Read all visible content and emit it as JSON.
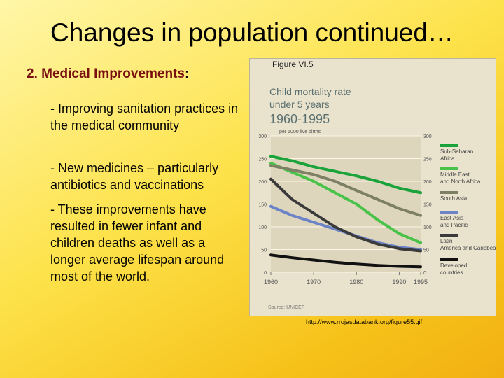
{
  "slide": {
    "title": "Changes in population continued…",
    "heading": "2. Medical Improvements",
    "heading_colon": ":",
    "bullets": [
      "- Improving sanitation practices in the medical community",
      "- New medicines – particularly antibiotics and vaccinations",
      "- These improvements have resulted in fewer infant and children deaths as well as a longer average lifespan around most of the world."
    ],
    "source_url": "http://www.rrojasdatabank.org/figure55.gif"
  },
  "chart_data": {
    "type": "line",
    "figure_label": "Figure VI.5",
    "title": "Child mortality rate under 5 years",
    "subtitle": "1960-1995",
    "ylabel": "per 1000 live births",
    "source": "Source: UNICEF",
    "x": [
      1960,
      1965,
      1970,
      1975,
      1980,
      1985,
      1990,
      1995
    ],
    "x_ticks": [
      "1960",
      "1970",
      "1980",
      "1990",
      "1995"
    ],
    "x_tick_values": [
      1960,
      1970,
      1980,
      1990,
      1995
    ],
    "y_ticks": [
      "0",
      "50",
      "100",
      "150",
      "200",
      "250",
      "300"
    ],
    "y_tick_values": [
      0,
      50,
      100,
      150,
      200,
      250,
      300
    ],
    "right_ticks": [
      "0",
      "50",
      "100",
      "150",
      "200",
      "250",
      "300"
    ],
    "ylim": [
      0,
      300
    ],
    "xlim": [
      1960,
      1995
    ],
    "grid": true,
    "legend": "right",
    "series": [
      {
        "name": "Sub-Saharan Africa",
        "color": "#1aa33a",
        "values": [
          255,
          245,
          232,
          222,
          212,
          200,
          185,
          175
        ]
      },
      {
        "name": "Middle East and North Africa",
        "color": "#48c248",
        "values": [
          240,
          220,
          200,
          175,
          150,
          115,
          85,
          65
        ]
      },
      {
        "name": "South Asia",
        "color": "#7e8066",
        "values": [
          235,
          225,
          215,
          200,
          180,
          160,
          140,
          125
        ]
      },
      {
        "name": "East Asia and Pacific",
        "color": "#6c83c8",
        "values": [
          145,
          125,
          110,
          95,
          80,
          65,
          55,
          50
        ]
      },
      {
        "name": "Latin America and Caribbean",
        "color": "#3a3a3a",
        "values": [
          205,
          160,
          130,
          100,
          78,
          62,
          52,
          47
        ]
      },
      {
        "name": "Developed countries",
        "color": "#111111",
        "values": [
          38,
          32,
          27,
          22,
          18,
          15,
          13,
          12
        ]
      }
    ]
  }
}
